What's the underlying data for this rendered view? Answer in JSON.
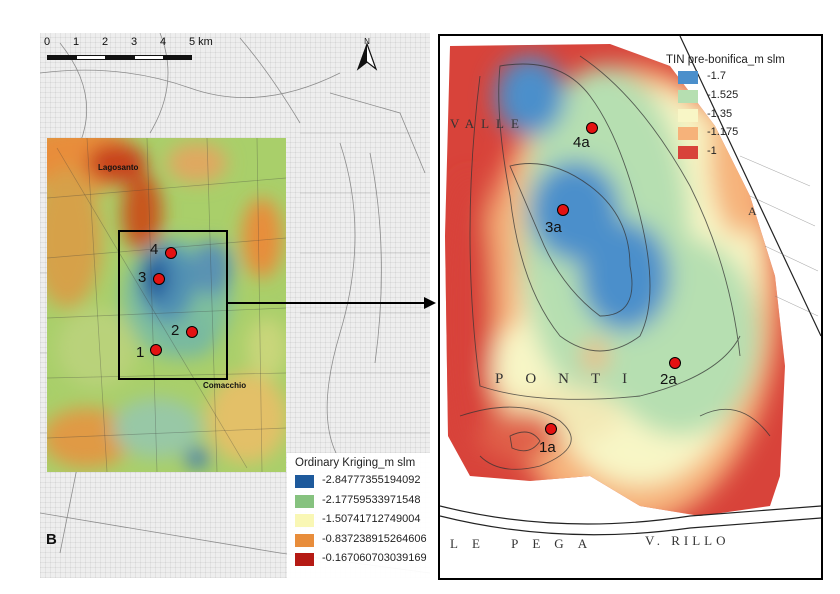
{
  "panel_label": "B",
  "scale_bar": {
    "ticks": [
      "0",
      "1",
      "2",
      "3",
      "4",
      "5 km"
    ]
  },
  "north_arrow": "north-arrow-icon",
  "places": {
    "lagosanto": "Lagosanto",
    "comacchio": "Comacchio"
  },
  "left_points": [
    {
      "label": "4"
    },
    {
      "label": "3"
    },
    {
      "label": "2"
    },
    {
      "label": "1"
    }
  ],
  "left_legend": {
    "title": "Ordinary Kriging_m slm",
    "items": [
      {
        "color": "#1e5a9c",
        "label": "-2.84777355194092"
      },
      {
        "color": "#86c27f",
        "label": "-2.17759533971548"
      },
      {
        "color": "#f9f7b5",
        "label": "-1.50741712749004"
      },
      {
        "color": "#e88d3b",
        "label": "-0.837238915264606"
      },
      {
        "color": "#b51a14",
        "label": "-0.167060703039169"
      }
    ]
  },
  "right_legend": {
    "title": "TIN pre-bonifica_m slm",
    "items": [
      {
        "color": "#4b8fcb",
        "label": "-1.7"
      },
      {
        "color": "#b6dfb1",
        "label": "-1.525"
      },
      {
        "color": "#f8f6c6",
        "label": "-1.35"
      },
      {
        "color": "#f6b27a",
        "label": "-1.175"
      },
      {
        "color": "#d8433a",
        "label": "-1"
      }
    ]
  },
  "right_points": [
    {
      "label": "4a"
    },
    {
      "label": "3a"
    },
    {
      "label": "2a"
    },
    {
      "label": "1a"
    }
  ],
  "historic_map_text": {
    "valle": "VALLE",
    "ponti": "PONTI",
    "le_pega": "LE PEGA",
    "v_rillo": "V. RILLO",
    "a": "A"
  }
}
